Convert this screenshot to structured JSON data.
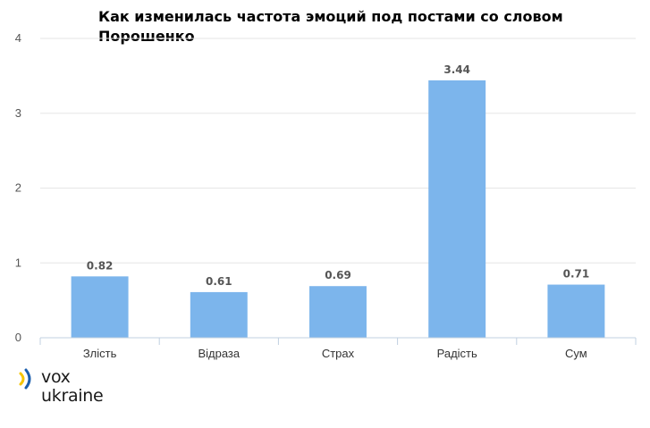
{
  "chart_data": {
    "type": "bar",
    "title": "Как изменилась частота эмоций под постами со словом Порошенко",
    "categories": [
      "Злість",
      "Відраза",
      "Страх",
      "Радість",
      "Сум"
    ],
    "values": [
      0.82,
      0.61,
      0.69,
      3.44,
      0.71
    ],
    "data_labels": [
      "0.82",
      "0.61",
      "0.69",
      "3.44",
      "0.71"
    ],
    "y_ticks": [
      "0",
      "1",
      "2",
      "3",
      "4"
    ],
    "ylim": [
      0,
      4
    ],
    "grid": true,
    "legend": "none",
    "bar_color": "#7cb5ec",
    "grid_color": "#e6e6e6",
    "axis_color": "#c0d0e0"
  },
  "logo": {
    "line1": "vox",
    "line2": "ukraine",
    "icon": "vox-ukraine-logo-icon",
    "colors": {
      "blue": "#1a5dad",
      "yellow": "#f5c400"
    }
  }
}
